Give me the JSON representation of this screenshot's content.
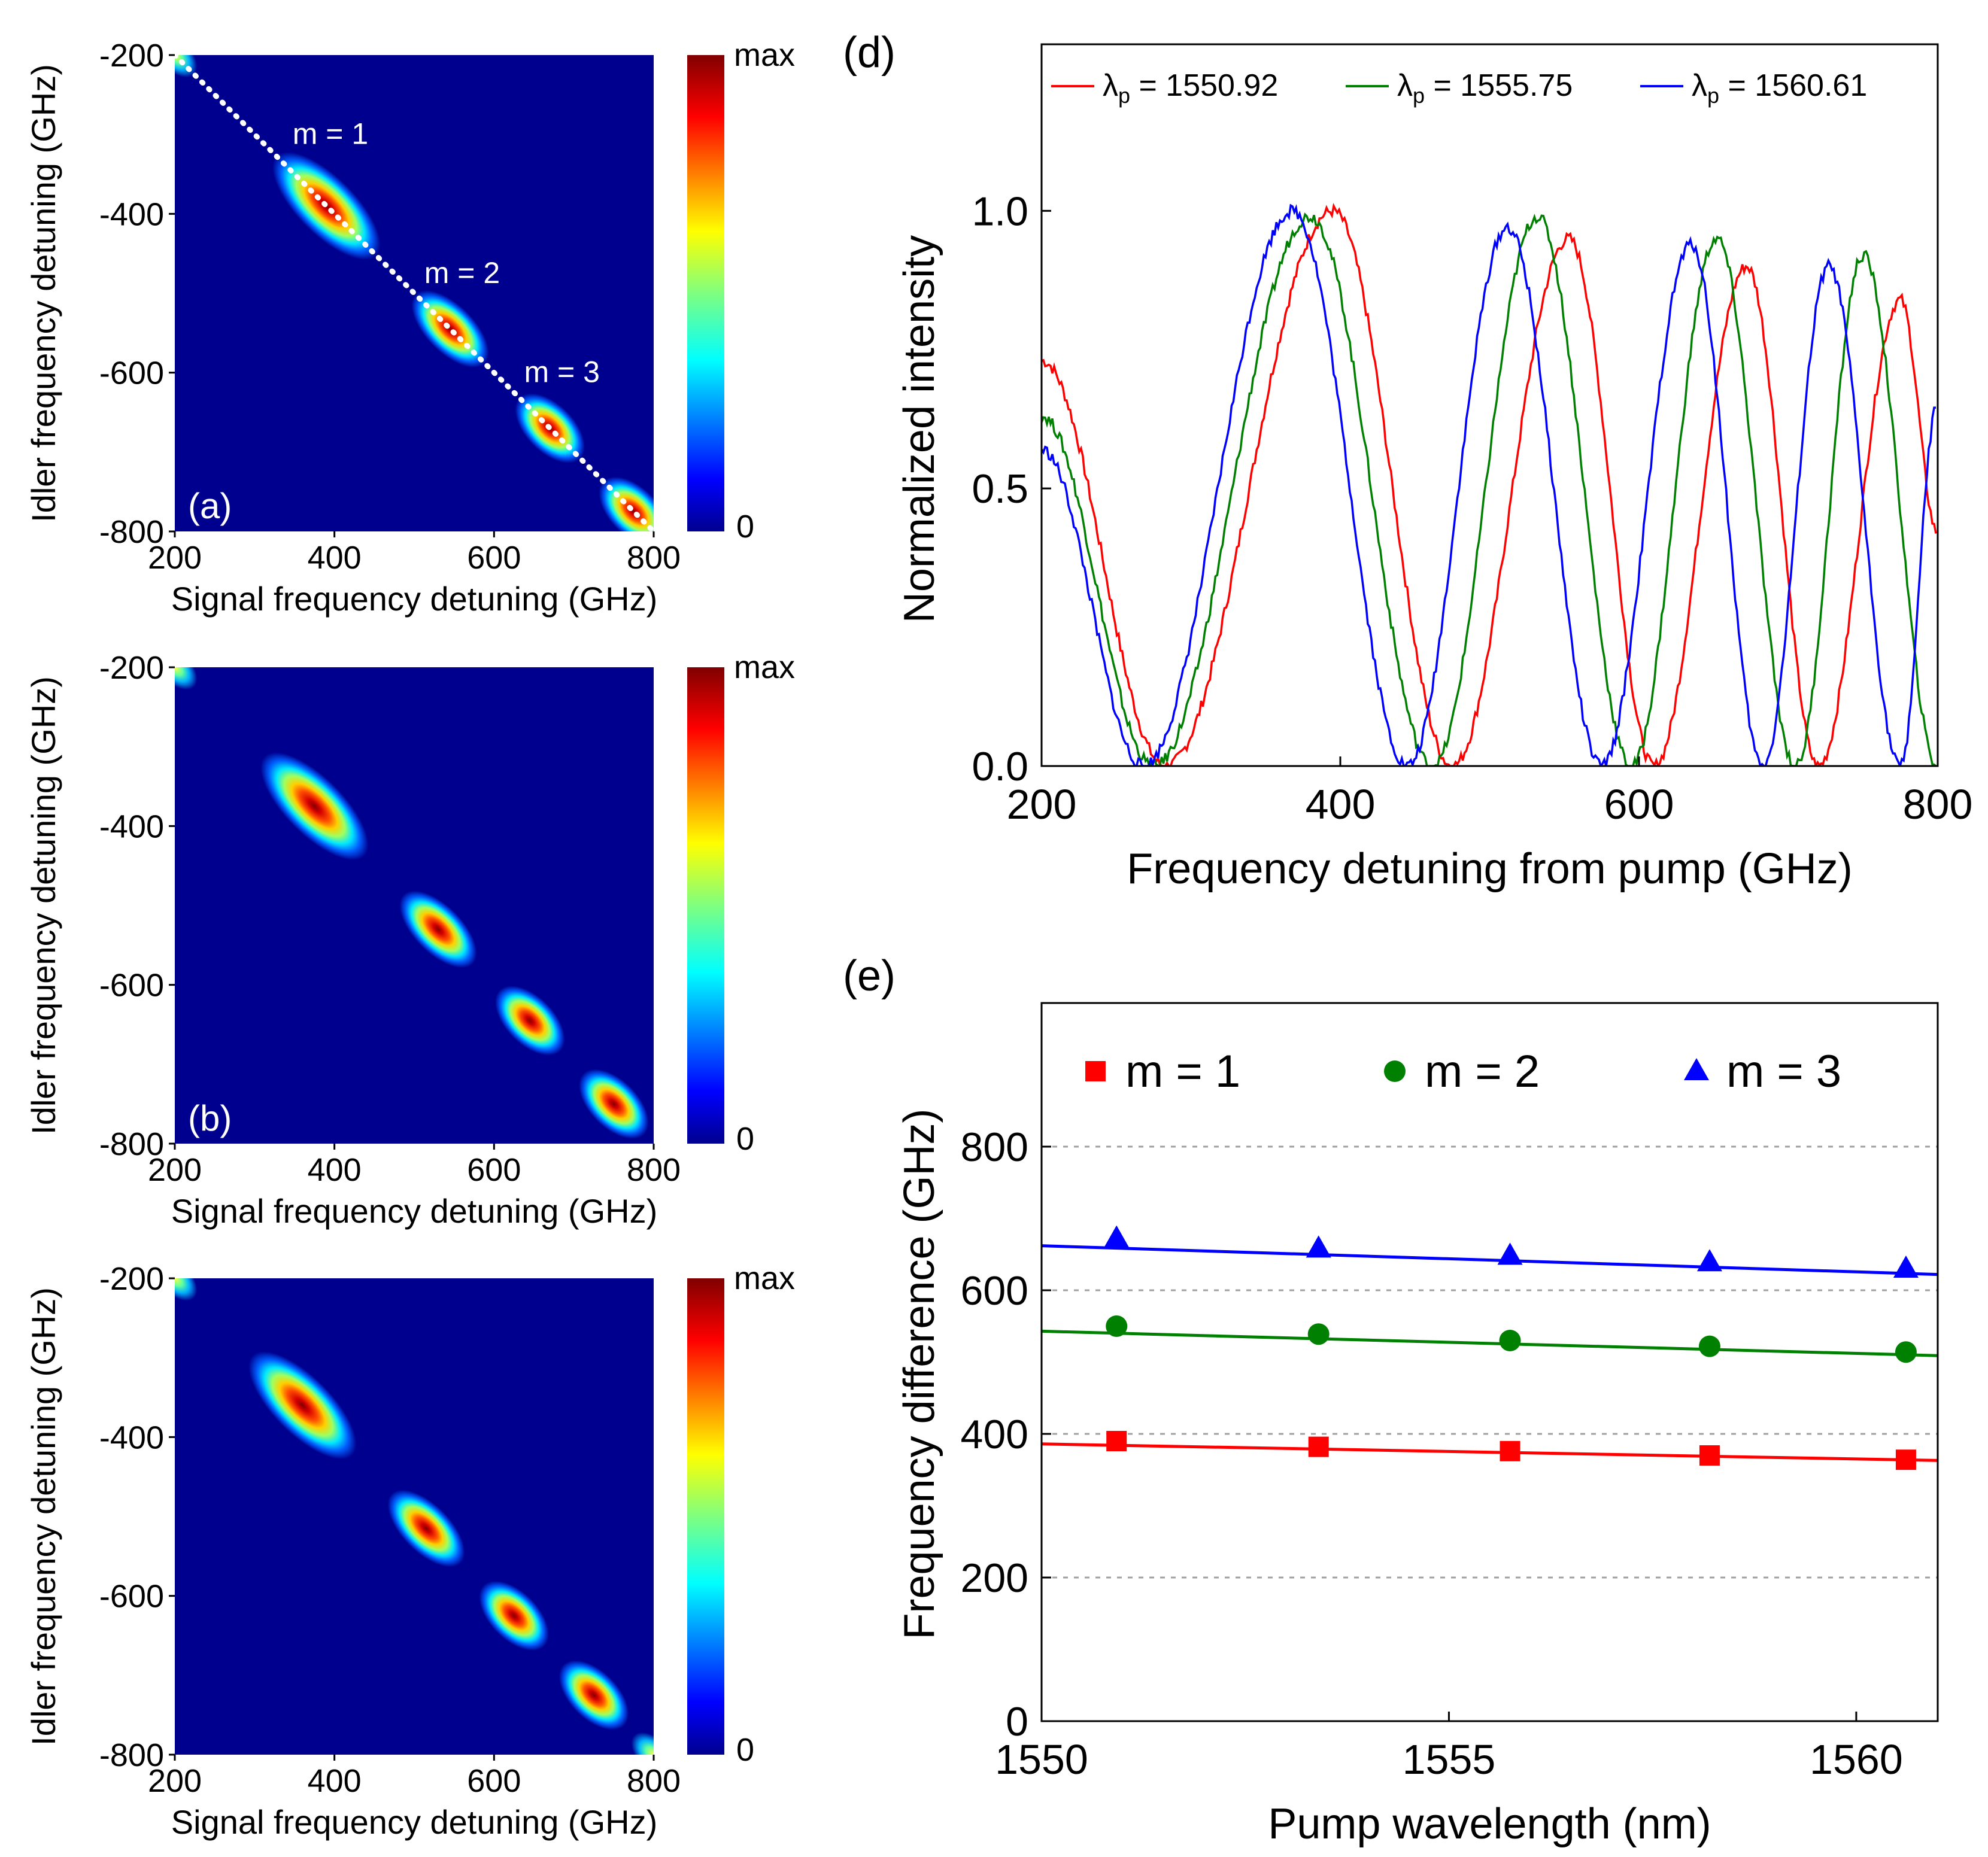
{
  "chart_data": [
    {
      "id": "a",
      "type": "heatmap",
      "panel_label": "(a)",
      "xlabel": "Signal frequency detuning (GHz)",
      "ylabel": "Idler frequency detuning (GHz)",
      "xlim": [
        200,
        800
      ],
      "ylim": [
        -800,
        -200
      ],
      "xticks": [
        200,
        400,
        600,
        800
      ],
      "yticks": [
        -200,
        -400,
        -600,
        -800
      ],
      "xtick_labels": [
        "200",
        "400",
        "600",
        "800"
      ],
      "ytick_labels": [
        "-200",
        "-400",
        "-600",
        "-800"
      ],
      "colorbar": {
        "min_label": "0",
        "max_label": "max",
        "colormap": "jet"
      },
      "lobes": [
        {
          "x": 200,
          "y": -200,
          "weight": 0.45
        },
        {
          "x": 390,
          "y": -390,
          "weight": 1.0
        },
        {
          "x": 545,
          "y": -545,
          "weight": 1.0
        },
        {
          "x": 670,
          "y": -670,
          "weight": 1.0
        },
        {
          "x": 775,
          "y": -775,
          "weight": 1.0
        }
      ],
      "dotted_line": {
        "from": [
          200,
          -200
        ],
        "to": [
          800,
          -800
        ],
        "color": "#ffffff"
      },
      "annotations": [
        {
          "text": "m = 1",
          "x": 395,
          "y": -312
        },
        {
          "text": "m = 2",
          "x": 560,
          "y": -487
        },
        {
          "text": "m = 3",
          "x": 685,
          "y": -612
        }
      ]
    },
    {
      "id": "b",
      "type": "heatmap",
      "panel_label": "(b)",
      "xlabel": "Signal frequency detuning (GHz)",
      "ylabel": "Idler frequency detuning (GHz)",
      "xlim": [
        200,
        800
      ],
      "ylim": [
        -800,
        -200
      ],
      "xticks": [
        200,
        400,
        600,
        800
      ],
      "yticks": [
        -200,
        -400,
        -600,
        -800
      ],
      "xtick_labels": [
        "200",
        "400",
        "600",
        "800"
      ],
      "ytick_labels": [
        "-200",
        "-400",
        "-600",
        "-800"
      ],
      "colorbar": {
        "min_label": "0",
        "max_label": "max",
        "colormap": "jet"
      },
      "lobes": [
        {
          "x": 200,
          "y": -200,
          "weight": 0.4
        },
        {
          "x": 375,
          "y": -375,
          "weight": 1.0
        },
        {
          "x": 530,
          "y": -530,
          "weight": 1.0
        },
        {
          "x": 645,
          "y": -645,
          "weight": 1.0
        },
        {
          "x": 750,
          "y": -750,
          "weight": 1.0
        }
      ]
    },
    {
      "id": "c",
      "type": "heatmap",
      "panel_label": "",
      "xlabel": "Signal frequency detuning (GHz)",
      "ylabel": "Idler frequency detuning (GHz)",
      "xlim": [
        200,
        800
      ],
      "ylim": [
        -800,
        -200
      ],
      "xticks": [
        200,
        400,
        600,
        800
      ],
      "yticks": [
        -200,
        -400,
        -600,
        -800
      ],
      "xtick_labels": [
        "200",
        "400",
        "600",
        "800"
      ],
      "ytick_labels": [
        "-200",
        "-400",
        "-600",
        "-800"
      ],
      "colorbar": {
        "min_label": "0",
        "max_label": "max",
        "colormap": "jet"
      },
      "lobes": [
        {
          "x": 200,
          "y": -200,
          "weight": 0.4
        },
        {
          "x": 360,
          "y": -360,
          "weight": 1.0
        },
        {
          "x": 515,
          "y": -515,
          "weight": 1.0
        },
        {
          "x": 625,
          "y": -625,
          "weight": 1.0
        },
        {
          "x": 725,
          "y": -725,
          "weight": 1.0
        },
        {
          "x": 800,
          "y": -800,
          "weight": 0.4
        }
      ]
    },
    {
      "id": "d",
      "type": "line",
      "panel_label": "(d)",
      "xlabel": "Frequency detuning from pump (GHz)",
      "ylabel": "Normalized intensity",
      "xlim": [
        200,
        800
      ],
      "ylim": [
        0,
        1.3
      ],
      "xticks": [
        200,
        400,
        600,
        800
      ],
      "yticks": [
        0.0,
        0.5,
        1.0
      ],
      "xtick_labels": [
        "200",
        "400",
        "600",
        "800"
      ],
      "ytick_labels": [
        "0.0",
        "0.5",
        "1.0"
      ],
      "legend_position": "top",
      "series": [
        {
          "name": "λp = 1550.92",
          "legend_main": "λ",
          "legend_sub": "p",
          "legend_value": " = 1550.92",
          "color": "#ff0000",
          "peaks": [
            395,
            553,
            672,
            775
          ],
          "peak_heights": [
            1.0,
            0.95,
            0.9,
            0.84
          ],
          "zeros": [
            283,
            475,
            610,
            720
          ],
          "start_value": 0.73,
          "end_value": 0.42
        },
        {
          "name": "λp = 1555.75",
          "legend_main": "λ",
          "legend_sub": "p",
          "legend_value": " = 1555.75",
          "color": "#008000",
          "peaks": [
            380,
            532,
            652,
            750
          ],
          "peak_heights": [
            0.99,
            0.99,
            0.95,
            0.92
          ],
          "zeros": [
            275,
            462,
            595,
            705
          ],
          "start_value": 0.63,
          "end_value": 0.0
        },
        {
          "name": "λp = 1560.61",
          "legend_main": "λ",
          "legend_sub": "p",
          "legend_value": " = 1560.61",
          "color": "#0000ff",
          "peaks": [
            368,
            512,
            635,
            727
          ],
          "peak_heights": [
            1.0,
            0.97,
            0.94,
            0.9
          ],
          "zeros": [
            268,
            445,
            575,
            683,
            775
          ],
          "start_value": 0.57,
          "end_value": 0.65
        }
      ]
    },
    {
      "id": "e",
      "type": "scatter",
      "panel_label": "(e)",
      "xlabel": "Pump wavelength (nm)",
      "ylabel": "Frequency difference (GHz)",
      "xlim": [
        1550,
        1561
      ],
      "ylim": [
        0,
        1000
      ],
      "xticks": [
        1550,
        1555,
        1560
      ],
      "yticks": [
        0,
        200,
        400,
        600,
        800
      ],
      "xtick_labels": [
        "1550",
        "1555",
        "1560"
      ],
      "ytick_labels": [
        "0",
        "200",
        "400",
        "600",
        "800"
      ],
      "grid": "dotted-horizontal",
      "legend_position": "top",
      "series": [
        {
          "name": "m = 1",
          "marker": "square",
          "color": "#ff0000",
          "x": [
            1550.92,
            1553.4,
            1555.75,
            1558.2,
            1560.61
          ],
          "y": [
            390,
            382,
            376,
            370,
            364
          ],
          "fit": {
            "x": [
              1550,
              1561
            ],
            "y": [
              386,
              363
            ]
          }
        },
        {
          "name": "m = 2",
          "marker": "circle",
          "color": "#008000",
          "x": [
            1550.92,
            1553.4,
            1555.75,
            1558.2,
            1560.61
          ],
          "y": [
            550,
            539,
            530,
            522,
            514
          ],
          "fit": {
            "x": [
              1550,
              1561
            ],
            "y": [
              543,
              509
            ]
          }
        },
        {
          "name": "m = 3",
          "marker": "triangle",
          "color": "#0000ff",
          "x": [
            1550.92,
            1553.4,
            1555.75,
            1558.2,
            1560.61
          ],
          "y": [
            672,
            658,
            648,
            639,
            630
          ],
          "fit": {
            "x": [
              1550,
              1561
            ],
            "y": [
              662,
              622
            ]
          }
        }
      ]
    }
  ]
}
